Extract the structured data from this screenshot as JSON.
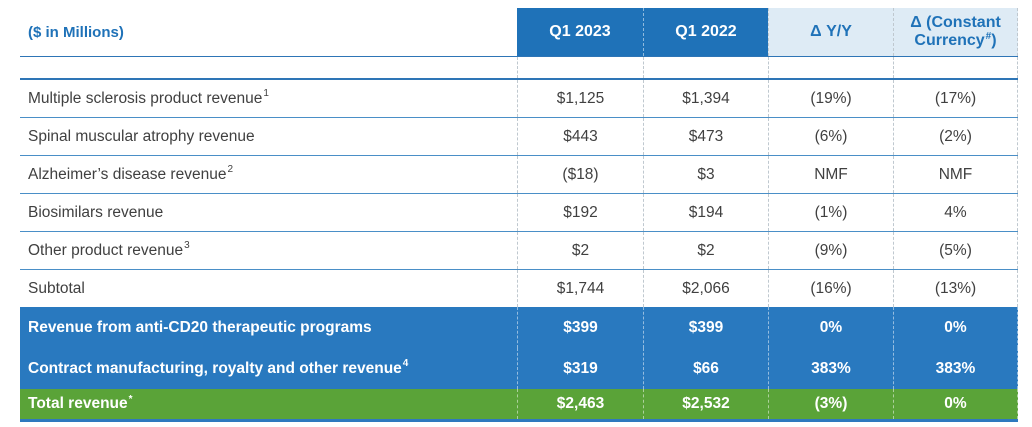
{
  "meta": {
    "units_label": "($ in Millions)"
  },
  "columns": [
    {
      "label": "Q1 2023",
      "sup": "",
      "after": ""
    },
    {
      "label": "Q1 2022",
      "sup": "",
      "after": ""
    },
    {
      "label": "Δ Y/Y",
      "sup": "",
      "after": ""
    },
    {
      "label": "Δ (Constant Currency",
      "sup": "#",
      "after": ")"
    }
  ],
  "rows": [
    {
      "label": "Multiple sclerosis product revenue",
      "sup": "1",
      "values": [
        "$1,125",
        "$1,394",
        "(19%)",
        "(17%)"
      ]
    },
    {
      "label": "Spinal muscular atrophy revenue",
      "sup": "",
      "values": [
        "$443",
        "$473",
        "(6%)",
        "(2%)"
      ]
    },
    {
      "label": "Alzheimer’s disease revenue",
      "sup": "2",
      "values": [
        "($18)",
        "$3",
        "NMF",
        "NMF"
      ]
    },
    {
      "label": "Biosimilars revenue",
      "sup": "",
      "values": [
        "$192",
        "$194",
        "(1%)",
        "4%"
      ]
    },
    {
      "label": "Other product revenue",
      "sup": "3",
      "values": [
        "$2",
        "$2",
        "(9%)",
        "(5%)"
      ]
    },
    {
      "label": "Subtotal",
      "sup": "",
      "values": [
        "$1,744",
        "$2,066",
        "(16%)",
        "(13%)"
      ]
    },
    {
      "label": "Revenue from anti-CD20 therapeutic programs",
      "sup": "",
      "values": [
        "$399",
        "$399",
        "0%",
        "0%"
      ]
    },
    {
      "label": "Contract manufacturing, royalty and other revenue",
      "sup": "4",
      "values": [
        "$319",
        "$66",
        "383%",
        "383%"
      ]
    },
    {
      "label": "Total revenue",
      "sup": "*",
      "values": [
        "$2,463",
        "$2,532",
        "(3%)",
        "0%"
      ]
    }
  ],
  "colors": {
    "header_dark_bg": "#1F72B8",
    "header_light_bg": "#DEEBF5",
    "accent_blue_text": "#1F72B8",
    "highlight_row_bg": "#2979BF",
    "total_row_bg": "#5AA338",
    "row_separator_line": "#4A8FC7",
    "strong_line": "#2E75B6",
    "body_text": "#404040"
  }
}
